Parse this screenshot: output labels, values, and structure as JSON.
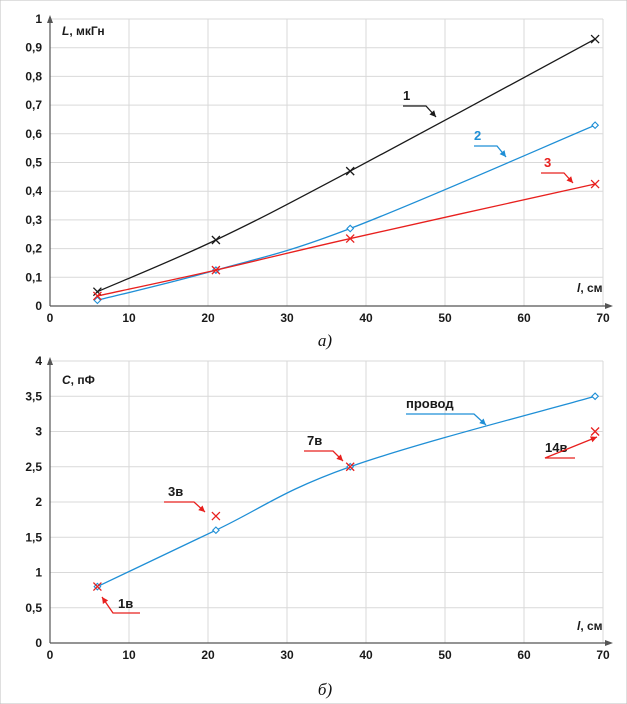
{
  "chart_data": [
    {
      "type": "line",
      "title": "",
      "panel_label": "а)",
      "ylabel": "L, мкГн",
      "ylabel_var": "L",
      "ylabel_unit": ", мкГн",
      "xlabel": "l, см",
      "xlabel_var": "l",
      "xlabel_unit": ", см",
      "xlim": [
        0,
        70
      ],
      "ylim": [
        0,
        1
      ],
      "xticks": [
        0,
        10,
        20,
        30,
        40,
        50,
        60,
        70
      ],
      "xtick_labels": [
        "0",
        "10",
        "20",
        "30",
        "40",
        "50",
        "60",
        "70"
      ],
      "yticks": [
        0,
        0.1,
        0.2,
        0.3,
        0.4,
        0.5,
        0.6,
        0.7,
        0.8,
        0.9,
        1
      ],
      "ytick_labels": [
        "0",
        "0,1",
        "0,2",
        "0,3",
        "0,4",
        "0,5",
        "0,6",
        "0,7",
        "0,8",
        "0,9",
        "1"
      ],
      "grid": true,
      "series": [
        {
          "name": "1",
          "color": "#1a1a1a",
          "marker": "x",
          "x": [
            6,
            21,
            38,
            69
          ],
          "y": [
            0.05,
            0.23,
            0.47,
            0.93
          ]
        },
        {
          "name": "2",
          "color": "#1f8fd6",
          "marker": "diamond",
          "x": [
            6,
            21,
            38,
            69
          ],
          "y": [
            0.02,
            0.125,
            0.27,
            0.63
          ]
        },
        {
          "name": "3",
          "color": "#e8201e",
          "marker": "x",
          "x": [
            6,
            21,
            38,
            69
          ],
          "y": [
            0.035,
            0.125,
            0.235,
            0.425
          ]
        }
      ]
    },
    {
      "type": "line",
      "title": "",
      "panel_label": "б)",
      "ylabel": "C, пФ",
      "ylabel_var": "C",
      "ylabel_unit": ", пФ",
      "xlabel": "l, см",
      "xlabel_var": "l",
      "xlabel_unit": ", см",
      "xlim": [
        0,
        70
      ],
      "ylim": [
        0,
        4
      ],
      "xticks": [
        0,
        10,
        20,
        30,
        40,
        50,
        60,
        70
      ],
      "xtick_labels": [
        "0",
        "10",
        "20",
        "30",
        "40",
        "50",
        "60",
        "70"
      ],
      "yticks": [
        0,
        0.5,
        1,
        1.5,
        2,
        2.5,
        3,
        3.5,
        4
      ],
      "ytick_labels": [
        "0",
        "0,5",
        "1",
        "1,5",
        "2",
        "2,5",
        "3",
        "3,5",
        "4"
      ],
      "grid": true,
      "series": [
        {
          "name": "провод",
          "color": "#1f8fd6",
          "marker": "diamond",
          "x": [
            6,
            21,
            38,
            69
          ],
          "y": [
            0.8,
            1.6,
            2.5,
            3.5
          ]
        }
      ],
      "points": [
        {
          "label": "1в",
          "color": "#e8201e",
          "marker": "x",
          "x": 6,
          "y": 0.8
        },
        {
          "label": "3в",
          "color": "#e8201e",
          "marker": "x",
          "x": 21,
          "y": 1.8
        },
        {
          "label": "7в",
          "color": "#e8201e",
          "marker": "x",
          "x": 38,
          "y": 2.5
        },
        {
          "label": "14в",
          "color": "#e8201e",
          "marker": "x",
          "x": 69,
          "y": 3
        }
      ]
    }
  ]
}
